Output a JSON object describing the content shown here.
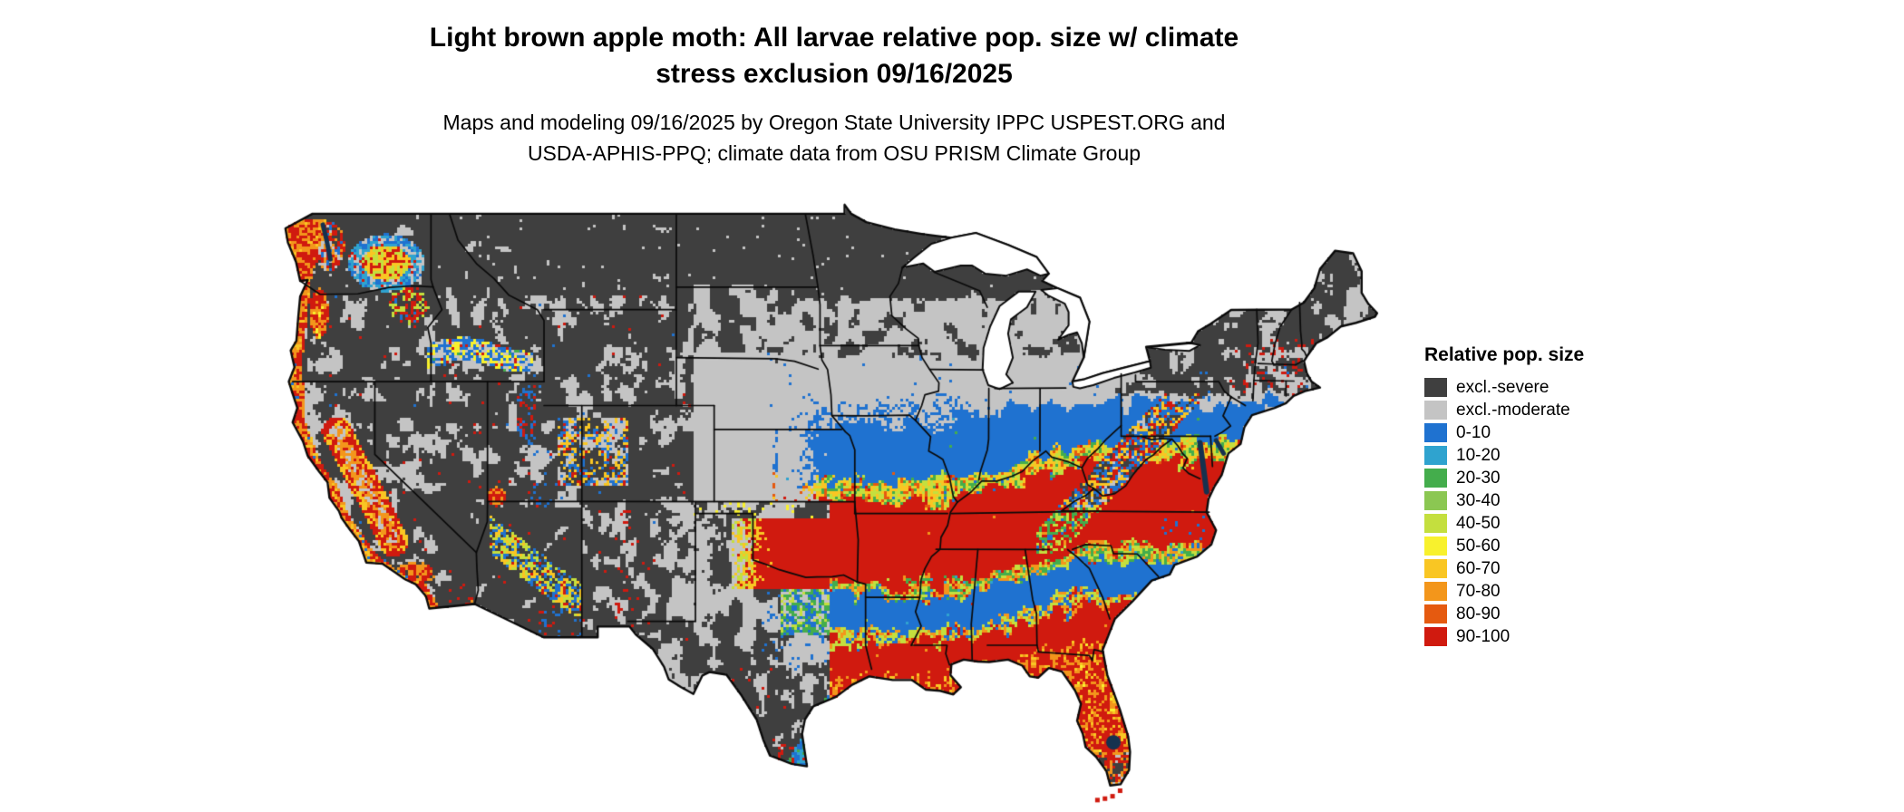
{
  "title": {
    "line1": "Light brown apple moth: All larvae relative pop. size w/ climate",
    "line2": "stress exclusion 09/16/2025"
  },
  "subtitle": {
    "line1": "Maps and modeling 09/16/2025 by Oregon State University IPPC USPEST.ORG and",
    "line2": "USDA-APHIS-PPQ; climate data from OSU PRISM Climate Group"
  },
  "legend": {
    "title": "Relative pop. size",
    "items": [
      {
        "label": "excl.-severe",
        "color": "#3f3f3f"
      },
      {
        "label": "excl.-moderate",
        "color": "#c4c4c4"
      },
      {
        "label": "0-10",
        "color": "#1f72d0"
      },
      {
        "label": "10-20",
        "color": "#2fa3cf"
      },
      {
        "label": "20-30",
        "color": "#44ad4c"
      },
      {
        "label": "30-40",
        "color": "#8bc752"
      },
      {
        "label": "40-50",
        "color": "#c4df3e"
      },
      {
        "label": "50-60",
        "color": "#f8f12d"
      },
      {
        "label": "60-70",
        "color": "#f9c623"
      },
      {
        "label": "70-80",
        "color": "#f3961b"
      },
      {
        "label": "80-90",
        "color": "#e55a10"
      },
      {
        "label": "90-100",
        "color": "#d01a0f"
      }
    ]
  }
}
